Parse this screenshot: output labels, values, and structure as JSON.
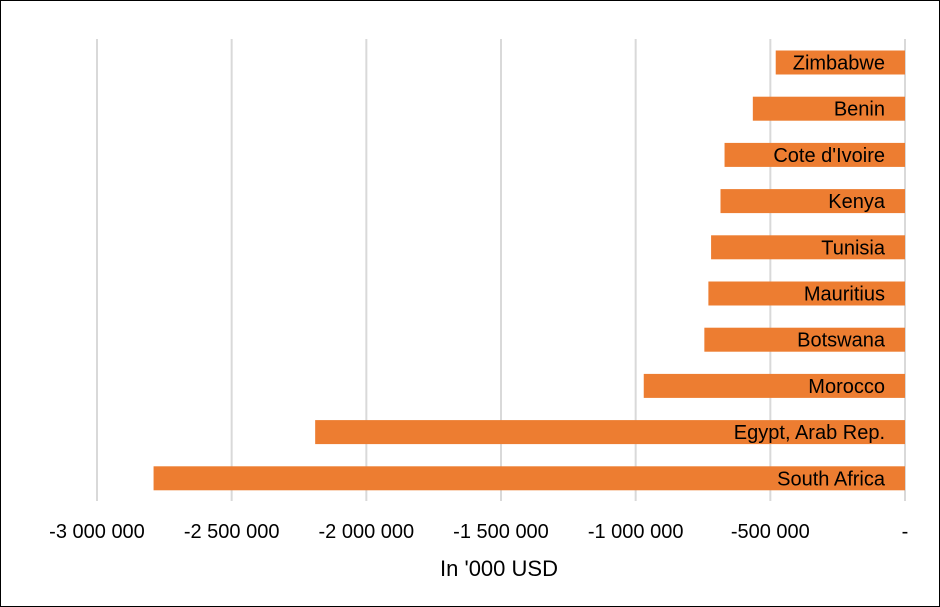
{
  "chart_data": {
    "type": "bar",
    "orientation": "horizontal",
    "categories": [
      "Zimbabwe",
      "Benin",
      "Cote d'Ivoire",
      "Kenya",
      "Tunisia",
      "Mauritius",
      "Botswana",
      "Morocco",
      "Egypt, Arab Rep.",
      "South Africa"
    ],
    "values": [
      -480000,
      -565000,
      -670000,
      -685000,
      -720000,
      -730000,
      -745000,
      -970000,
      -2190000,
      -2790000
    ],
    "xlabel": "In '000 USD",
    "ylabel": "",
    "xlim": [
      -3000000,
      0
    ],
    "x_ticks": [
      -3000000,
      -2500000,
      -2000000,
      -1500000,
      -1000000,
      -500000,
      0
    ],
    "x_tick_labels": [
      "-3 000 000",
      "-2 500 000",
      "-2 000 000",
      "-1 500 000",
      "-1 000 000",
      "-500 000",
      "-"
    ],
    "grid": "vertical",
    "legend": "none",
    "bar_color": "#ED7D31",
    "grid_color": "#D9D9D9"
  }
}
